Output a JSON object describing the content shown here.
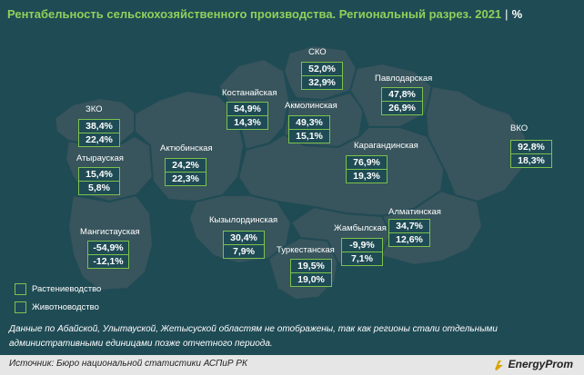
{
  "title": "Рентабельность сельскохозяйственного производства. Региональный разрез. 2021",
  "unit": "%",
  "legend": {
    "crop": "Растениеводство",
    "livestock": "Животноводство"
  },
  "regions": {
    "zko": {
      "name": "ЗКО",
      "crop": "38,4%",
      "livestock": "22,4%"
    },
    "atyrau": {
      "name": "Атырауская",
      "crop": "15,4%",
      "livestock": "5,8%"
    },
    "mangistau": {
      "name": "Мангистауская",
      "crop": "-54,9%",
      "livestock": "-12,1%"
    },
    "aktobe": {
      "name": "Актюбинская",
      "crop": "24,2%",
      "livestock": "22,3%"
    },
    "kostanay": {
      "name": "Костанайская",
      "crop": "54,9%",
      "livestock": "14,3%"
    },
    "sko": {
      "name": "СКО",
      "crop": "52,0%",
      "livestock": "32,9%"
    },
    "akmola": {
      "name": "Акмолинская",
      "crop": "49,3%",
      "livestock": "15,1%"
    },
    "pavlodar": {
      "name": "Павлодарская",
      "crop": "47,8%",
      "livestock": "26,9%"
    },
    "vko": {
      "name": "ВКО",
      "crop": "92,8%",
      "livestock": "18,3%"
    },
    "karaganda": {
      "name": "Карагандинская",
      "crop": "76,9%",
      "livestock": "19,3%"
    },
    "kyzylorda": {
      "name": "Кызылординская",
      "crop": "30,4%",
      "livestock": "7,9%"
    },
    "turkestan": {
      "name": "Туркестанская",
      "crop": "19,5%",
      "livestock": "19,0%"
    },
    "zhambyl": {
      "name": "Жамбылская",
      "crop": "-9,9%",
      "livestock": "7,1%"
    },
    "almaty": {
      "name": "Алматинская",
      "crop": "34,7%",
      "livestock": "12,6%"
    }
  },
  "note": "Данные по Абайской, Улытауской, Жетысуской областям не отображены, так как регионы стали отдельными административными единицами позже отчетного периода.",
  "source": "Источник: Бюро национальной статистики АСПиР РК",
  "logo": "EnergyProm",
  "colors": {
    "background": "#1f4b55",
    "land": "#38545c",
    "border": "#1f4b55",
    "accent": "#8fd15a",
    "box_border": "#7cc24d"
  }
}
